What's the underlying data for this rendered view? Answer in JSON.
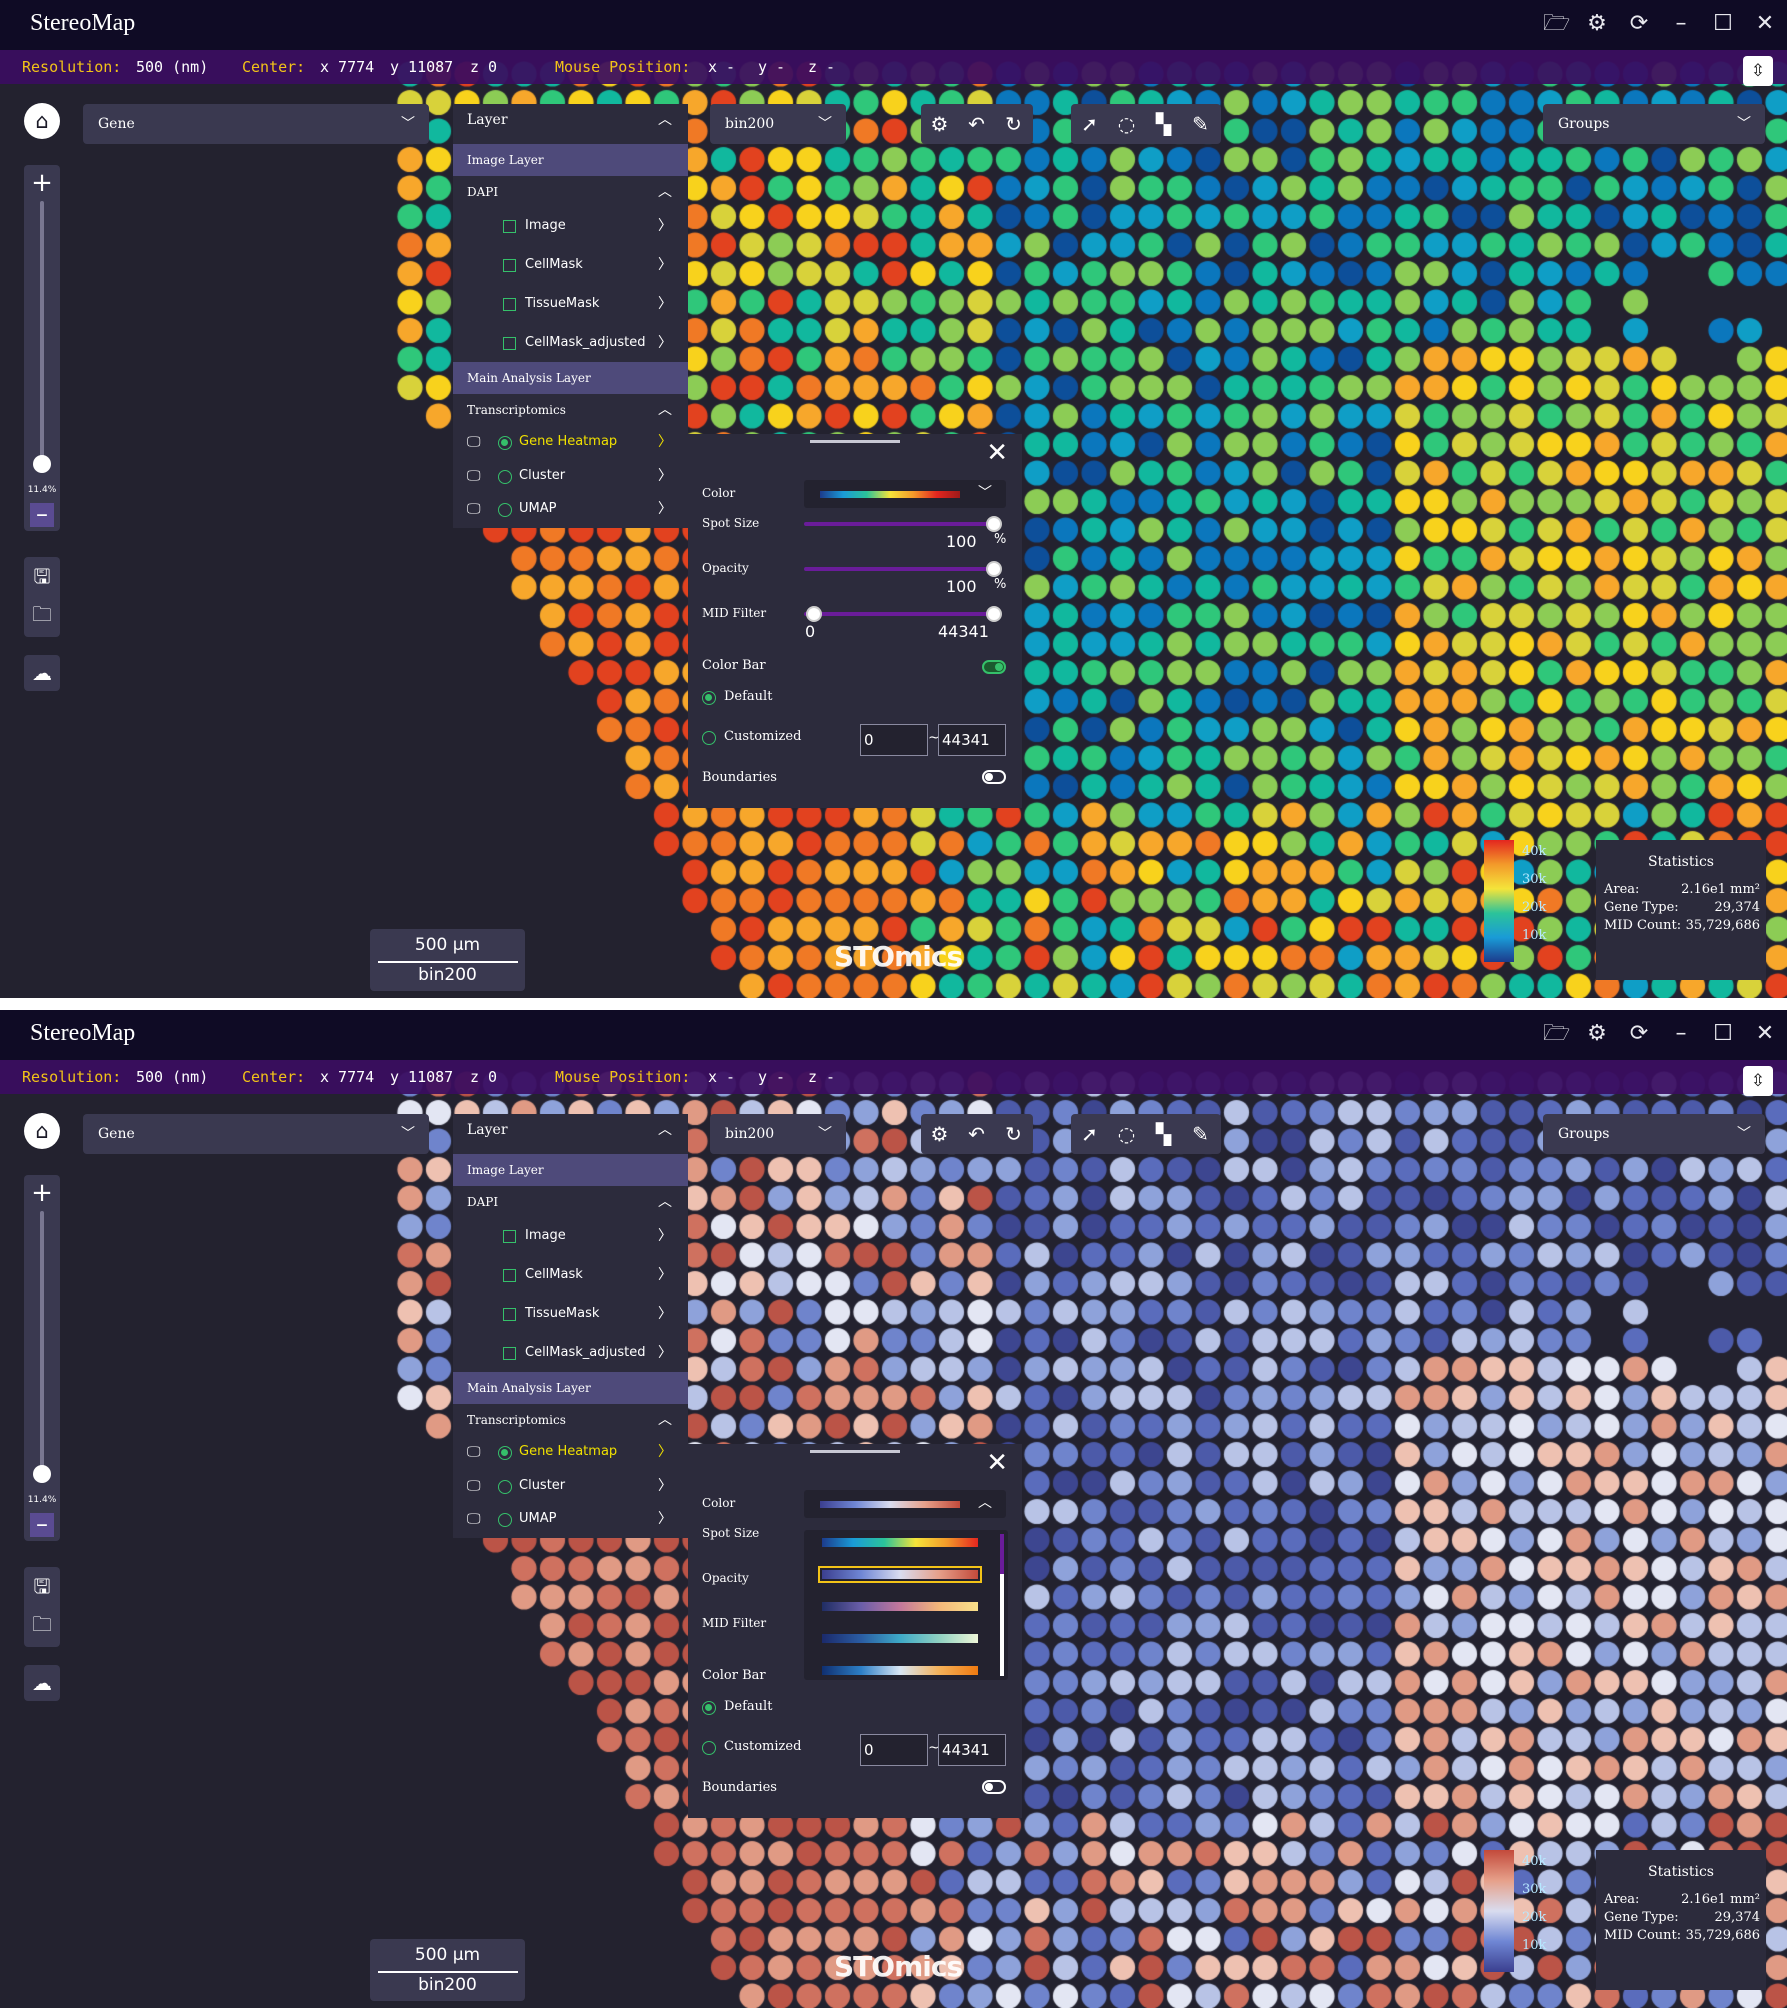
{
  "app": {
    "title": "StereoMap",
    "window_icons": [
      "folder-open-icon",
      "settings-gear-icon",
      "refresh-icon",
      "minimize-icon",
      "maximize-icon",
      "close-icon"
    ]
  },
  "infobar": {
    "resolution_label": "Resolution:",
    "resolution_value": "500 (nm)",
    "center_label": "Center:",
    "center_x": "x 7774",
    "center_y": "y 11087",
    "center_z": "z 0",
    "mouse_label": "Mouse Position:",
    "mouse_x": "x -",
    "mouse_y": "y -",
    "mouse_z": "z -"
  },
  "zoom": {
    "percent": "11.4%",
    "level_fraction": 0.95
  },
  "gene_dropdown": {
    "label": "Gene"
  },
  "bin_dropdown": {
    "label": "bin200"
  },
  "groups_dropdown": {
    "label": "Groups"
  },
  "layer_panel": {
    "header": "Layer",
    "image_layer": "Image Layer",
    "dapi": "DAPI",
    "image_items": [
      "Image",
      "CellMask",
      "TissueMask",
      "CellMask_adjusted"
    ],
    "main_layer": "Main Analysis Layer",
    "transcriptomics": "Transcriptomics",
    "analysis_items": [
      "Gene Heatmap",
      "Cluster",
      "UMAP"
    ]
  },
  "settings": {
    "color_label": "Color",
    "spot_size_label": "Spot Size",
    "spot_size_value": "100",
    "spot_size_unit": "%",
    "opacity_label": "Opacity",
    "opacity_value": "100",
    "opacity_unit": "%",
    "mid_filter_label": "MID Filter",
    "mid_min": "0",
    "mid_max": "44341",
    "color_bar_label": "Color Bar",
    "default_label": "Default",
    "customized_label": "Customized",
    "custom_min": "0",
    "custom_max": "44341",
    "boundaries_label": "Boundaries"
  },
  "scale": {
    "length": "500 μm",
    "bin": "bin200"
  },
  "watermark": "STOmics",
  "legend_ticks": [
    "40k",
    "30k",
    "20k",
    "10k"
  ],
  "statistics": {
    "title": "Statistics",
    "area_label": "Area:",
    "area_value": "2.16e1 mm²",
    "gene_type_label": "Gene Type:",
    "gene_type_value": "29,374",
    "mid_count_label": "MID Count:",
    "mid_count_value": "35,729,686"
  },
  "colors": {
    "background": "#23222f",
    "titlebar": "#0f0b25",
    "infobar": "#3a0d60",
    "accent_green": "#35c06a",
    "accent_yellow": "#f2c318",
    "panel": "#2c2b3c"
  }
}
